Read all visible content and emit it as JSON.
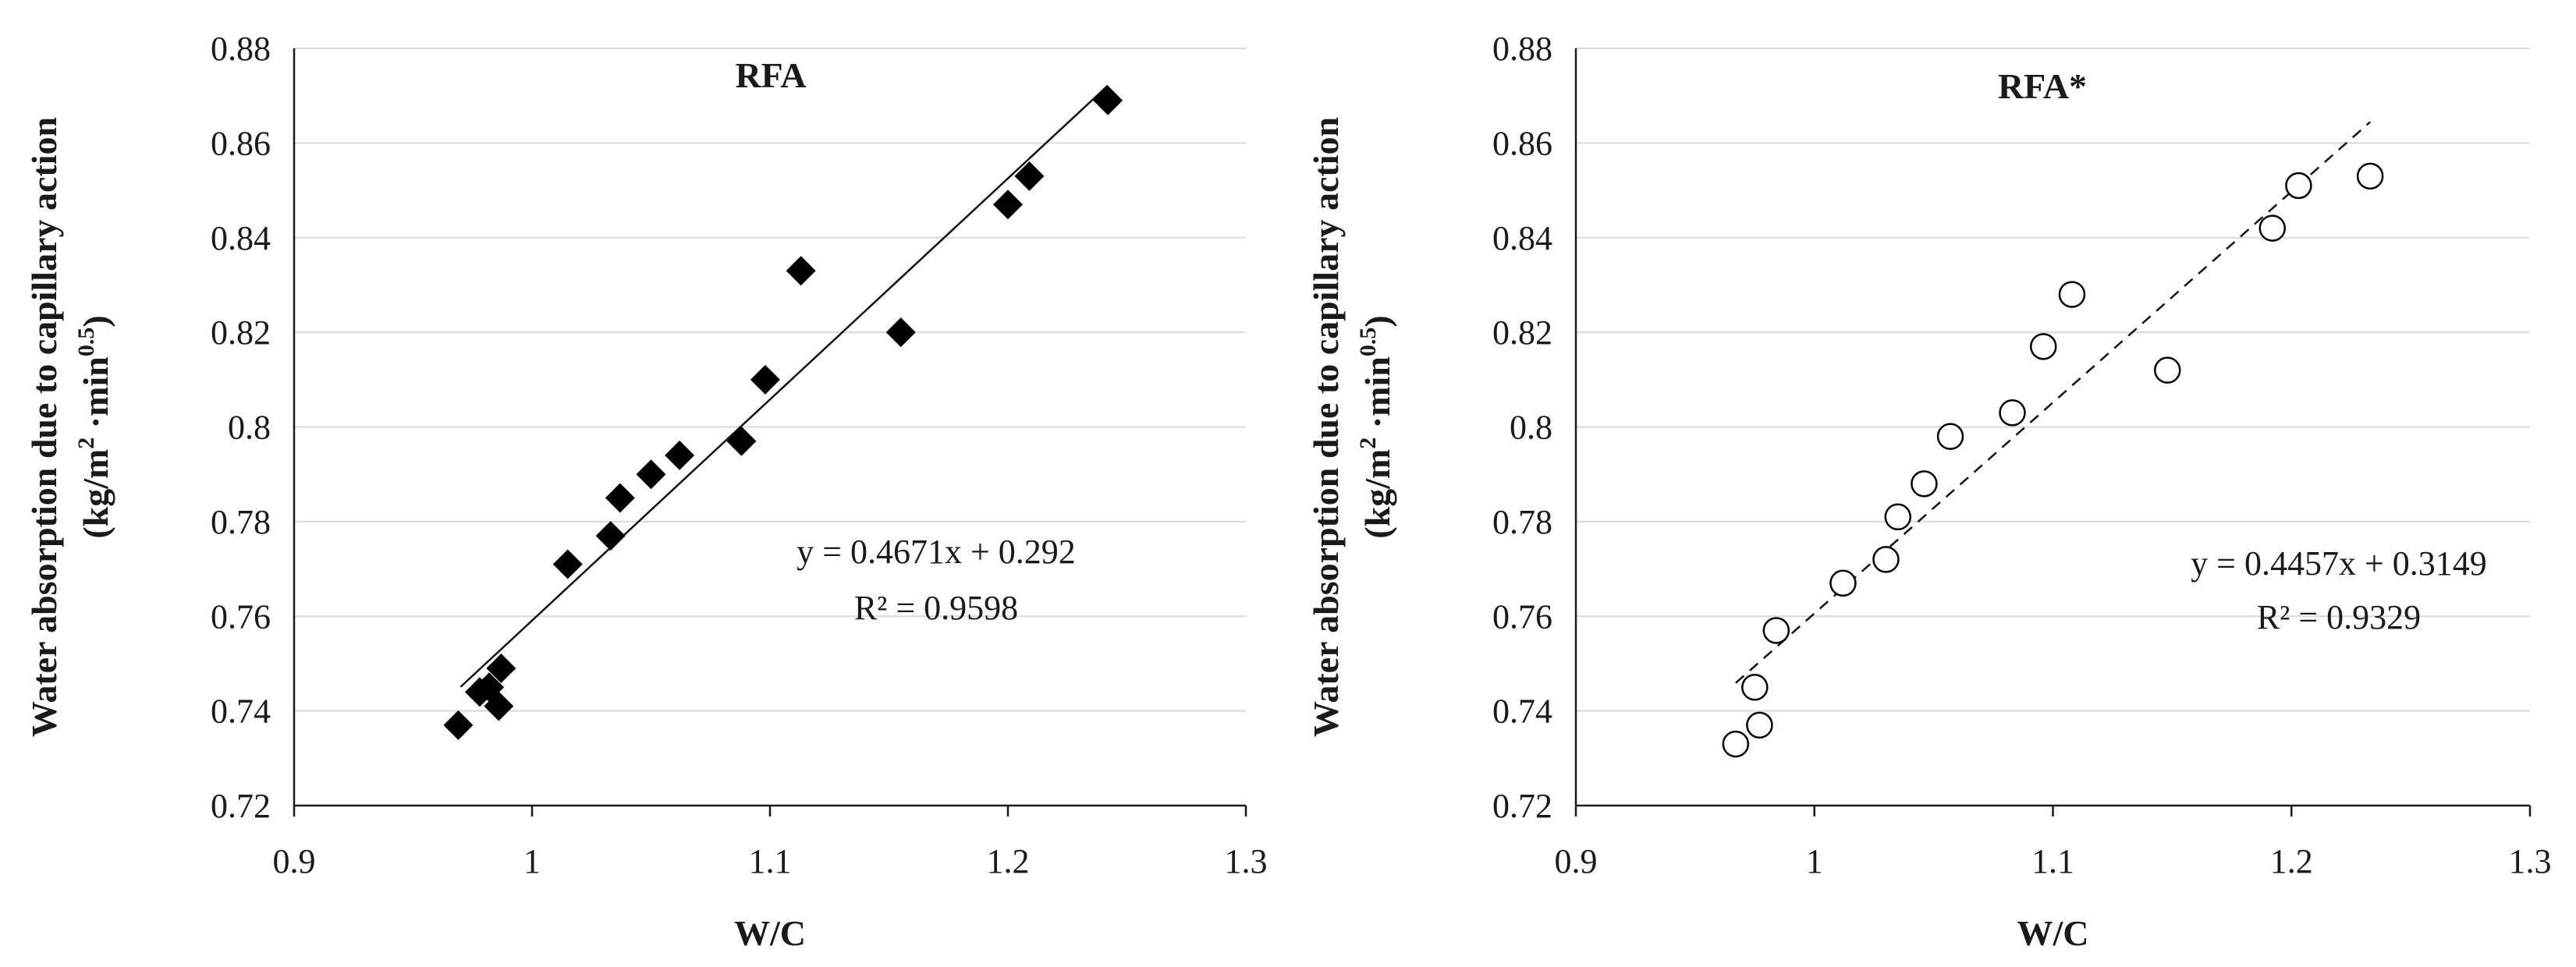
{
  "chart_data": [
    {
      "type": "scatter",
      "title": "RFA",
      "xlabel": "W/C",
      "ylabel_line1": "Water absorption due to capillary action",
      "ylabel_line2_base": "(kg/m",
      "ylabel_line2_sup1": "2",
      "ylabel_line2_mid": " ·min",
      "ylabel_line2_sup2": "0.5",
      "ylabel_line2_end": ")",
      "xlim": [
        0.9,
        1.3
      ],
      "ylim": [
        0.72,
        0.88
      ],
      "xticks": [
        "0.9",
        "1",
        "1.1",
        "1.2",
        "1.3"
      ],
      "yticks": [
        "0.72",
        "0.74",
        "0.76",
        "0.78",
        "0.8",
        "0.82",
        "0.84",
        "0.86",
        "0.88"
      ],
      "grid": "horizontal",
      "marker": "filled-diamond",
      "x": [
        0.969,
        0.978,
        0.982,
        0.986,
        0.987,
        1.015,
        1.033,
        1.037,
        1.05,
        1.062,
        1.088,
        1.098,
        1.113,
        1.155,
        1.2,
        1.209,
        1.242
      ],
      "y": [
        0.737,
        0.744,
        0.745,
        0.741,
        0.749,
        0.771,
        0.777,
        0.785,
        0.79,
        0.794,
        0.797,
        0.81,
        0.833,
        0.82,
        0.847,
        0.853,
        0.869
      ],
      "trendline": {
        "slope": 0.4671,
        "intercept": 0.292,
        "x_range": [
          0.97,
          1.242
        ],
        "style": "solid"
      },
      "equation": "y = 0.4671x + 0.292",
      "r_squared": "R² = 0.9598"
    },
    {
      "type": "scatter",
      "title": "RFA*",
      "xlabel": "W/C",
      "ylabel_line1": "Water absorption due to capillary action",
      "ylabel_line2_base": "(kg/m",
      "ylabel_line2_sup1": "2",
      "ylabel_line2_mid": " ·min",
      "ylabel_line2_sup2": "0.5",
      "ylabel_line2_end": ")",
      "xlim": [
        0.9,
        1.3
      ],
      "ylim": [
        0.72,
        0.88
      ],
      "xticks": [
        "0.9",
        "1",
        "1.1",
        "1.2",
        "1.3"
      ],
      "yticks": [
        "0.72",
        "0.74",
        "0.76",
        "0.78",
        "0.8",
        "0.82",
        "0.84",
        "0.86",
        "0.88"
      ],
      "grid": "horizontal",
      "marker": "open-circle",
      "x": [
        0.967,
        0.975,
        0.977,
        0.984,
        1.012,
        1.03,
        1.035,
        1.046,
        1.057,
        1.083,
        1.096,
        1.108,
        1.148,
        1.192,
        1.203,
        1.233
      ],
      "y": [
        0.733,
        0.745,
        0.737,
        0.757,
        0.767,
        0.772,
        0.781,
        0.788,
        0.798,
        0.803,
        0.817,
        0.828,
        0.812,
        0.842,
        0.851,
        0.853
      ],
      "trendline": {
        "slope": 0.4457,
        "intercept": 0.3149,
        "x_range": [
          0.967,
          1.233
        ],
        "style": "dashed"
      },
      "equation": "y = 0.4457x + 0.3149",
      "r_squared": "R² = 0.9329"
    }
  ]
}
